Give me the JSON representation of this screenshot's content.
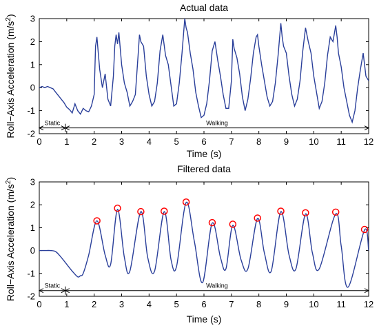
{
  "chart_data": [
    {
      "type": "line",
      "title": "Actual data",
      "xlabel": "Time (s)",
      "ylabel": "Roll−Axis Acceleration (m/s",
      "ylabel_sup": "2",
      "ylabel_close": ")",
      "xlim": [
        0,
        12
      ],
      "ylim": [
        -2,
        3
      ],
      "xticks": [
        "0",
        "1",
        "2",
        "3",
        "4",
        "5",
        "6",
        "7",
        "8",
        "9",
        "10",
        "11",
        "12"
      ],
      "yticks": [
        "-2",
        "-1",
        "0",
        "1",
        "2",
        "3"
      ],
      "grid": false,
      "series": [
        {
          "color": "#2a3f9a",
          "x": [
            0,
            0.1,
            0.2,
            0.3,
            0.4,
            0.5,
            0.6,
            0.7,
            0.8,
            0.9,
            1.0,
            1.1,
            1.2,
            1.3,
            1.4,
            1.5,
            1.6,
            1.7,
            1.8,
            1.9,
            2.0,
            2.05,
            2.1,
            2.2,
            2.3,
            2.4,
            2.5,
            2.6,
            2.7,
            2.75,
            2.8,
            2.85,
            2.9,
            3.0,
            3.1,
            3.2,
            3.3,
            3.4,
            3.5,
            3.6,
            3.65,
            3.7,
            3.8,
            3.9,
            4.0,
            4.1,
            4.2,
            4.3,
            4.4,
            4.5,
            4.6,
            4.7,
            4.8,
            4.9,
            5.0,
            5.1,
            5.2,
            5.3,
            5.35,
            5.4,
            5.5,
            5.6,
            5.7,
            5.8,
            5.9,
            6.0,
            6.1,
            6.2,
            6.3,
            6.4,
            6.5,
            6.6,
            6.7,
            6.8,
            6.9,
            7.0,
            7.05,
            7.1,
            7.2,
            7.3,
            7.4,
            7.5,
            7.6,
            7.7,
            7.8,
            7.9,
            7.95,
            8.0,
            8.1,
            8.2,
            8.3,
            8.4,
            8.5,
            8.6,
            8.7,
            8.8,
            8.85,
            8.9,
            9.0,
            9.1,
            9.2,
            9.3,
            9.4,
            9.5,
            9.6,
            9.7,
            9.75,
            9.8,
            9.9,
            10.0,
            10.1,
            10.2,
            10.3,
            10.4,
            10.5,
            10.6,
            10.7,
            10.8,
            10.85,
            10.9,
            11.0,
            11.1,
            11.2,
            11.3,
            11.4,
            11.5,
            11.6,
            11.7,
            11.8,
            11.9,
            12.0
          ],
          "y": [
            0.0,
            0.05,
            0.0,
            0.05,
            0.0,
            -0.05,
            -0.2,
            -0.35,
            -0.5,
            -0.65,
            -0.85,
            -0.95,
            -1.1,
            -0.7,
            -1.0,
            -1.15,
            -0.9,
            -1.0,
            -1.05,
            -0.8,
            -0.3,
            1.8,
            2.2,
            0.8,
            0.0,
            0.6,
            -0.5,
            -0.8,
            0.5,
            1.8,
            2.3,
            1.9,
            2.4,
            1.0,
            0.2,
            -0.2,
            -0.8,
            -0.6,
            -0.3,
            1.4,
            2.3,
            2.0,
            1.8,
            0.5,
            -0.3,
            -0.8,
            -0.6,
            0.2,
            1.6,
            2.3,
            1.4,
            1.0,
            0.1,
            -0.8,
            -0.7,
            0.2,
            1.5,
            3.0,
            2.6,
            2.4,
            1.5,
            0.8,
            -0.2,
            -0.8,
            -1.3,
            -1.2,
            -0.7,
            0.3,
            1.6,
            2.0,
            1.2,
            0.5,
            -0.3,
            -0.9,
            -0.9,
            0.3,
            2.1,
            1.7,
            1.3,
            0.6,
            -0.4,
            -1.0,
            -0.5,
            0.4,
            1.5,
            2.2,
            2.3,
            1.8,
            1.0,
            0.3,
            -0.4,
            -0.8,
            -0.6,
            0.2,
            1.4,
            2.8,
            2.2,
            1.8,
            1.5,
            0.5,
            -0.3,
            -0.8,
            -0.5,
            0.3,
            1.6,
            2.6,
            2.3,
            2.0,
            1.5,
            0.5,
            -0.2,
            -0.9,
            -0.6,
            0.2,
            1.4,
            2.2,
            2.0,
            2.7,
            2.2,
            1.5,
            0.9,
            0.0,
            -0.6,
            -1.2,
            -1.5,
            -1.0,
            0.0,
            0.8,
            1.5,
            0.5,
            0.3
          ]
        }
      ],
      "annotations": [
        {
          "text": "Static",
          "x_start": 0,
          "x_end": 0.95,
          "y": -1.75
        },
        {
          "text": "Walking",
          "x_start": 0.95,
          "x_end": 12,
          "y": -1.75
        }
      ]
    },
    {
      "type": "line",
      "title": "Filtered data",
      "xlabel": "Time (s)",
      "ylabel": "Roll−Axis Acceleration (m/s",
      "ylabel_sup": "2",
      "ylabel_close": ")",
      "xlim": [
        0,
        12
      ],
      "ylim": [
        -2,
        3
      ],
      "xticks": [
        "0",
        "1",
        "2",
        "3",
        "4",
        "5",
        "6",
        "7",
        "8",
        "9",
        "10",
        "11",
        "12"
      ],
      "yticks": [
        "-2",
        "-1",
        "0",
        "1",
        "2",
        "3"
      ],
      "grid": false,
      "series": [
        {
          "color": "#2a3f9a",
          "x": [
            0,
            0.2,
            0.4,
            0.6,
            0.8,
            1.0,
            1.2,
            1.4,
            1.5,
            1.6,
            1.8,
            2.1,
            2.4,
            2.6,
            2.85,
            3.1,
            3.3,
            3.7,
            3.95,
            4.2,
            4.55,
            4.8,
            5.0,
            5.35,
            5.65,
            5.95,
            6.3,
            6.6,
            6.8,
            7.05,
            7.35,
            7.6,
            7.95,
            8.2,
            8.45,
            8.8,
            9.1,
            9.35,
            9.7,
            9.95,
            10.2,
            10.8,
            11.0,
            11.25,
            11.85,
            12.0
          ],
          "y": [
            0.0,
            0.0,
            0.0,
            -0.05,
            -0.3,
            -0.6,
            -0.9,
            -1.15,
            -1.1,
            -1.0,
            -0.2,
            1.3,
            -0.2,
            -0.6,
            1.8,
            -0.3,
            -0.9,
            1.7,
            -0.3,
            -0.9,
            1.7,
            -0.4,
            -0.7,
            2.1,
            0.4,
            -1.4,
            1.2,
            -0.3,
            -0.8,
            1.1,
            -0.4,
            -0.8,
            1.4,
            -0.1,
            -0.9,
            1.7,
            -0.2,
            -0.8,
            1.6,
            -0.1,
            -0.8,
            1.6,
            0.2,
            -1.6,
            0.9,
            0.0
          ]
        }
      ],
      "peaks": {
        "x": [
          2.1,
          2.85,
          3.7,
          4.55,
          5.35,
          6.3,
          7.05,
          7.95,
          8.8,
          9.7,
          10.8,
          11.85
        ],
        "y": [
          1.3,
          1.85,
          1.7,
          1.72,
          2.12,
          1.22,
          1.15,
          1.42,
          1.72,
          1.65,
          1.68,
          0.92
        ],
        "color": "#ff0000"
      },
      "annotations": [
        {
          "text": "Static",
          "x_start": 0,
          "x_end": 0.95,
          "y": -1.75
        },
        {
          "text": "Walking",
          "x_start": 0.95,
          "x_end": 12,
          "y": -1.75
        }
      ]
    }
  ]
}
